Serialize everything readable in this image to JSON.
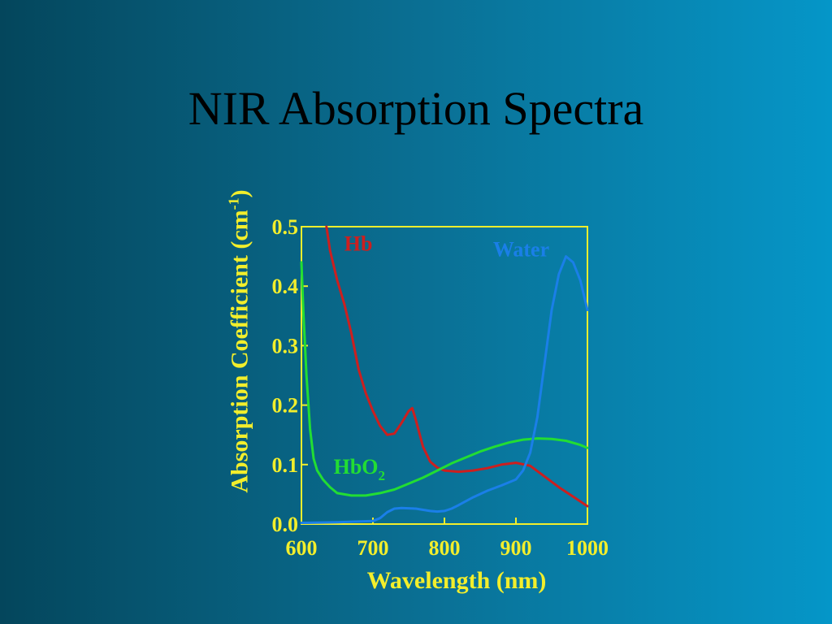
{
  "chart_data": {
    "type": "line",
    "title": "NIR Absorption Spectra",
    "xlabel": "Wavelength (nm)",
    "ylabel_main": "Absorption Coefficient (cm",
    "ylabel_sup": "-1",
    "ylabel_end": ")",
    "xlim": [
      600,
      1000
    ],
    "ylim": [
      0,
      0.5
    ],
    "x_ticks": [
      600,
      700,
      800,
      900,
      1000
    ],
    "x_tick_labels": [
      "600",
      "700",
      "800",
      "900",
      "1000"
    ],
    "y_ticks": [
      0,
      0.1,
      0.2,
      0.3,
      0.4,
      0.5
    ],
    "y_tick_labels": [
      "0.0",
      "0.1",
      "0.2",
      "0.3",
      "0.4",
      "0.5"
    ],
    "colors": {
      "axis": "#f2ee2c"
    },
    "series": [
      {
        "name": "Hb",
        "color": "#cc1f1f",
        "label_pos": [
          660,
          0.46
        ],
        "x": [
          635,
          640,
          650,
          660,
          670,
          680,
          690,
          700,
          710,
          720,
          730,
          740,
          750,
          755,
          760,
          770,
          780,
          790,
          800,
          820,
          840,
          860,
          880,
          900,
          920,
          940,
          960,
          980,
          1000
        ],
        "y": [
          0.5,
          0.46,
          0.41,
          0.37,
          0.32,
          0.26,
          0.22,
          0.19,
          0.165,
          0.15,
          0.152,
          0.17,
          0.19,
          0.195,
          0.175,
          0.13,
          0.105,
          0.095,
          0.09,
          0.088,
          0.09,
          0.094,
          0.1,
          0.103,
          0.098,
          0.08,
          0.062,
          0.046,
          0.03
        ]
      },
      {
        "name": "HbO2",
        "label_main": "HbO",
        "label_sub": "2",
        "color": "#22dd33",
        "label_pos": [
          645,
          0.085
        ],
        "x": [
          600,
          603,
          607,
          612,
          617,
          622,
          630,
          640,
          650,
          670,
          690,
          710,
          730,
          750,
          770,
          790,
          810,
          830,
          850,
          870,
          890,
          910,
          930,
          950,
          970,
          990,
          1000
        ],
        "y": [
          0.44,
          0.35,
          0.25,
          0.16,
          0.11,
          0.09,
          0.075,
          0.062,
          0.052,
          0.048,
          0.048,
          0.052,
          0.058,
          0.068,
          0.078,
          0.09,
          0.102,
          0.112,
          0.122,
          0.13,
          0.137,
          0.142,
          0.144,
          0.143,
          0.14,
          0.133,
          0.128
        ]
      },
      {
        "name": "Water",
        "color": "#1a7fe8",
        "label_pos": [
          868,
          0.45
        ],
        "x": [
          600,
          650,
          700,
          710,
          720,
          730,
          740,
          760,
          780,
          790,
          800,
          810,
          820,
          840,
          860,
          880,
          900,
          910,
          920,
          930,
          940,
          950,
          960,
          970,
          980,
          990,
          1000
        ],
        "y": [
          0.002,
          0.003,
          0.005,
          0.01,
          0.02,
          0.026,
          0.027,
          0.026,
          0.022,
          0.021,
          0.022,
          0.026,
          0.032,
          0.045,
          0.056,
          0.065,
          0.075,
          0.09,
          0.12,
          0.18,
          0.27,
          0.36,
          0.42,
          0.45,
          0.44,
          0.41,
          0.36
        ]
      }
    ]
  }
}
